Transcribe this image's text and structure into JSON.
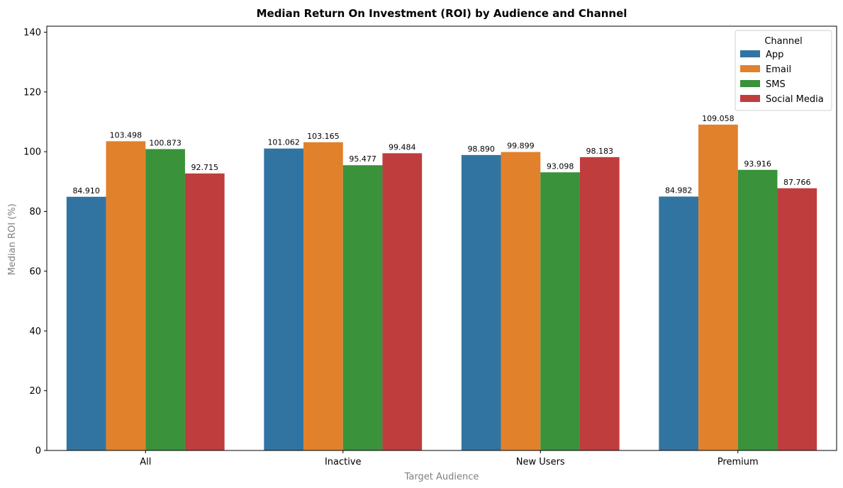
{
  "chart_data": {
    "type": "bar",
    "title": "Median Return On Investment (ROI) by Audience and Channel",
    "xlabel": "Target Audience",
    "ylabel": "Median ROI (%)",
    "ylim": [
      0,
      142
    ],
    "yticks": [
      0,
      20,
      40,
      60,
      80,
      100,
      120,
      140
    ],
    "categories": [
      "All",
      "Inactive",
      "New Users",
      "Premium"
    ],
    "legend_title": "Channel",
    "legend_position": "top-right",
    "grid": false,
    "series": [
      {
        "name": "App",
        "color": "#3274a1",
        "values": [
          84.91,
          101.062,
          98.89,
          84.982
        ],
        "labels": [
          "84.910",
          "101.062",
          "98.890",
          "84.982"
        ]
      },
      {
        "name": "Email",
        "color": "#e1812c",
        "values": [
          103.498,
          103.165,
          99.899,
          109.058
        ],
        "labels": [
          "103.498",
          "103.165",
          "99.899",
          "109.058"
        ]
      },
      {
        "name": "SMS",
        "color": "#3a923a",
        "values": [
          100.873,
          95.477,
          93.098,
          93.916
        ],
        "labels": [
          "100.873",
          "95.477",
          "93.098",
          "93.916"
        ]
      },
      {
        "name": "Social Media",
        "color": "#c03d3e",
        "values": [
          92.715,
          99.484,
          98.183,
          87.766
        ],
        "labels": [
          "92.715",
          "99.484",
          "98.183",
          "87.766"
        ]
      }
    ]
  }
}
